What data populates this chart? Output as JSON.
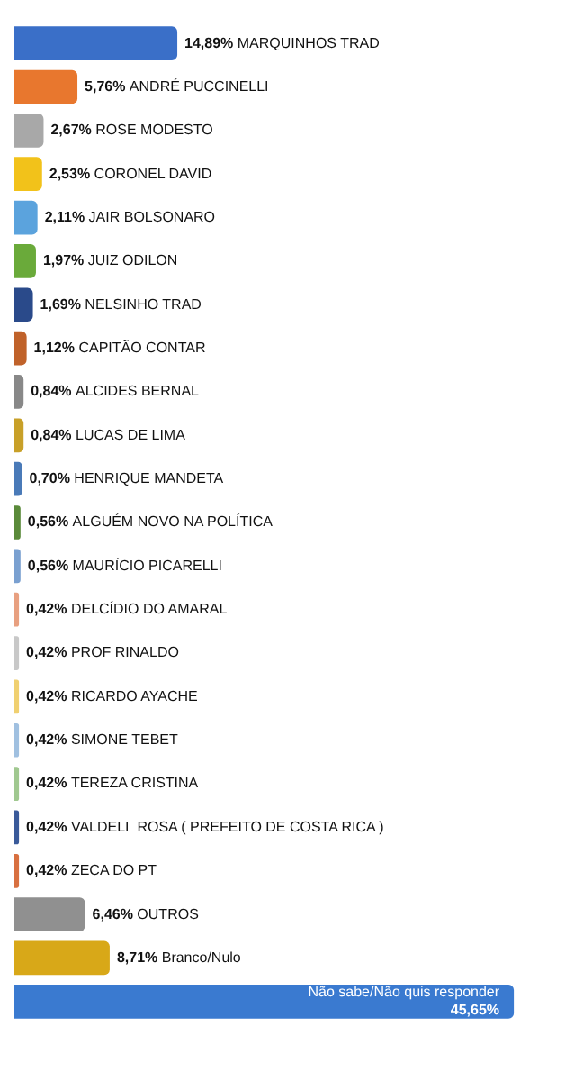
{
  "chart_data": {
    "type": "bar",
    "orientation": "horizontal",
    "categories": [
      "MARQUINHOS TRAD",
      "ANDRÉ PUCCINELLI",
      "ROSE MODESTO",
      "CORONEL DAVID",
      "JAIR BOLSONARO",
      "JUIZ ODILON",
      "NELSINHO TRAD",
      "CAPITÃO CONTAR",
      "ALCIDES BERNAL",
      "LUCAS DE LIMA",
      "HENRIQUE MANDETA",
      "ALGUÉM NOVO NA POLÍTICA",
      "MAURÍCIO PICARELLI",
      "DELCÍDIO DO AMARAL",
      "PROF RINALDO",
      "RICARDO AYACHE",
      "SIMONE TEBET",
      "TEREZA CRISTINA",
      "VALDELI  ROSA ( PREFEITO DE COSTA RICA )",
      "ZECA DO PT",
      "OUTROS",
      "Branco/Nulo",
      "Não sabe/Não quis responder"
    ],
    "values": [
      14.89,
      5.76,
      2.67,
      2.53,
      2.11,
      1.97,
      1.69,
      1.12,
      0.84,
      0.84,
      0.7,
      0.56,
      0.56,
      0.42,
      0.42,
      0.42,
      0.42,
      0.42,
      0.42,
      0.42,
      6.46,
      8.71,
      45.65
    ],
    "value_labels": [
      "14,89%",
      "5,76%",
      "2,67%",
      "2,53%",
      "2,11%",
      "1,97%",
      "1,69%",
      "1,12%",
      "0,84%",
      "0,84%",
      "0,70%",
      "0,56%",
      "0,56%",
      "0,42%",
      "0,42%",
      "0,42%",
      "0,42%",
      "0,42%",
      "0,42%",
      "0,42%",
      "6,46%",
      "8,71%",
      "45,65%"
    ],
    "colors": [
      "#3a6fc8",
      "#e8772e",
      "#a8a8a8",
      "#f2c21a",
      "#5ba3dd",
      "#6aaa3a",
      "#2a4a8a",
      "#c0622a",
      "#888888",
      "#c8a028",
      "#4a7ab8",
      "#5a8a3a",
      "#7aa0d0",
      "#e8a080",
      "#c8c8c8",
      "#f0d070",
      "#a0c0e0",
      "#a0c890",
      "#3a5a9a",
      "#d87040",
      "#909090",
      "#d8a818",
      "#3a7ad0"
    ]
  }
}
